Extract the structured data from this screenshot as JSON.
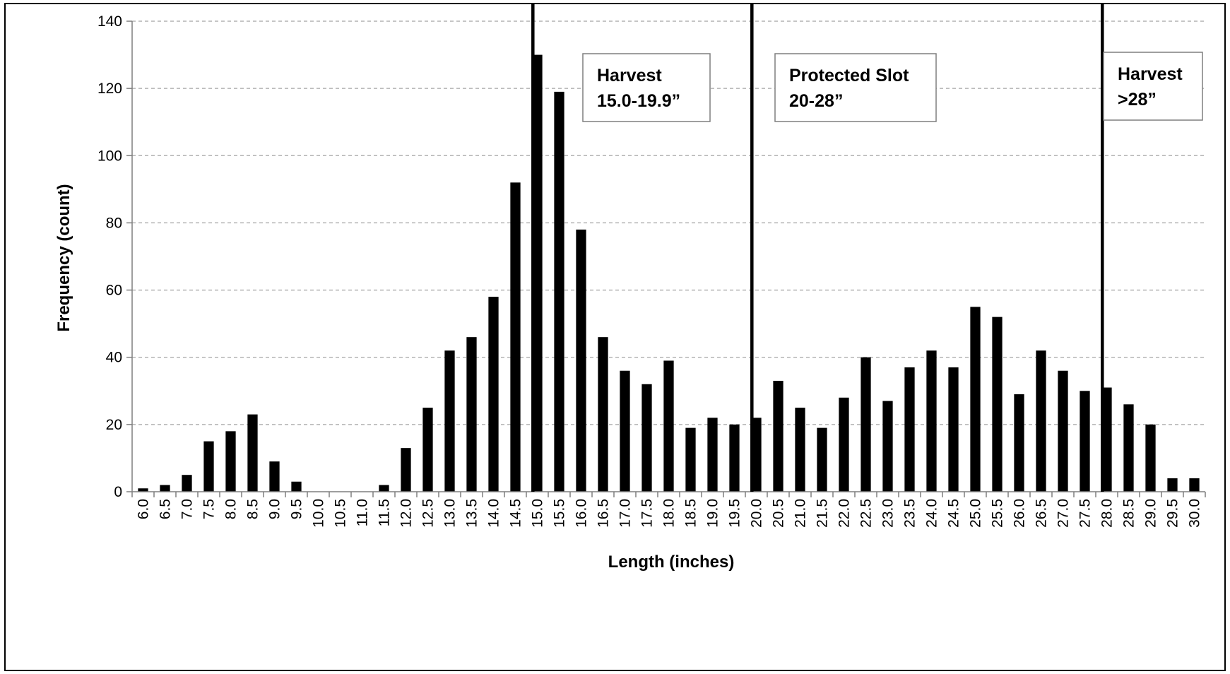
{
  "chart_data": {
    "type": "bar",
    "xlabel": "Length (inches)",
    "ylabel": "Frequency (count)",
    "ylim": [
      0,
      140
    ],
    "yticks": [
      "0",
      "20",
      "40",
      "60",
      "80",
      "100",
      "120",
      "140"
    ],
    "grid": "horizontal dashed",
    "bar_color": "#000000",
    "categories": [
      "6.0",
      "6.5",
      "7.0",
      "7.5",
      "8.0",
      "8.5",
      "9.0",
      "9.5",
      "10.0",
      "10.5",
      "11.0",
      "11.5",
      "12.0",
      "12.5",
      "13.0",
      "13.5",
      "14.0",
      "14.5",
      "15.0",
      "15.5",
      "16.0",
      "16.5",
      "17.0",
      "17.5",
      "18.0",
      "18.5",
      "19.0",
      "19.5",
      "20.0",
      "20.5",
      "21.0",
      "21.5",
      "22.0",
      "22.5",
      "23.0",
      "23.5",
      "24.0",
      "24.5",
      "25.0",
      "25.5",
      "26.0",
      "26.5",
      "27.0",
      "27.5",
      "28.0",
      "28.5",
      "29.0",
      "29.5",
      "30.0"
    ],
    "values": [
      1,
      2,
      5,
      15,
      18,
      23,
      9,
      3,
      0,
      0,
      0,
      2,
      13,
      25,
      42,
      46,
      58,
      92,
      130,
      119,
      78,
      46,
      36,
      32,
      39,
      19,
      22,
      20,
      22,
      33,
      25,
      19,
      28,
      40,
      27,
      37,
      42,
      37,
      55,
      52,
      29,
      42,
      36,
      30,
      31,
      26,
      20,
      4,
      4
    ],
    "boundaries": [
      14.9,
      19.9,
      27.9
    ],
    "annotations": [
      {
        "lines": [
          "Harvest",
          "15.0-19.9”"
        ]
      },
      {
        "lines": [
          "Protected Slot",
          "20-28”"
        ]
      },
      {
        "lines": [
          "Harvest",
          ">28”"
        ]
      }
    ]
  }
}
